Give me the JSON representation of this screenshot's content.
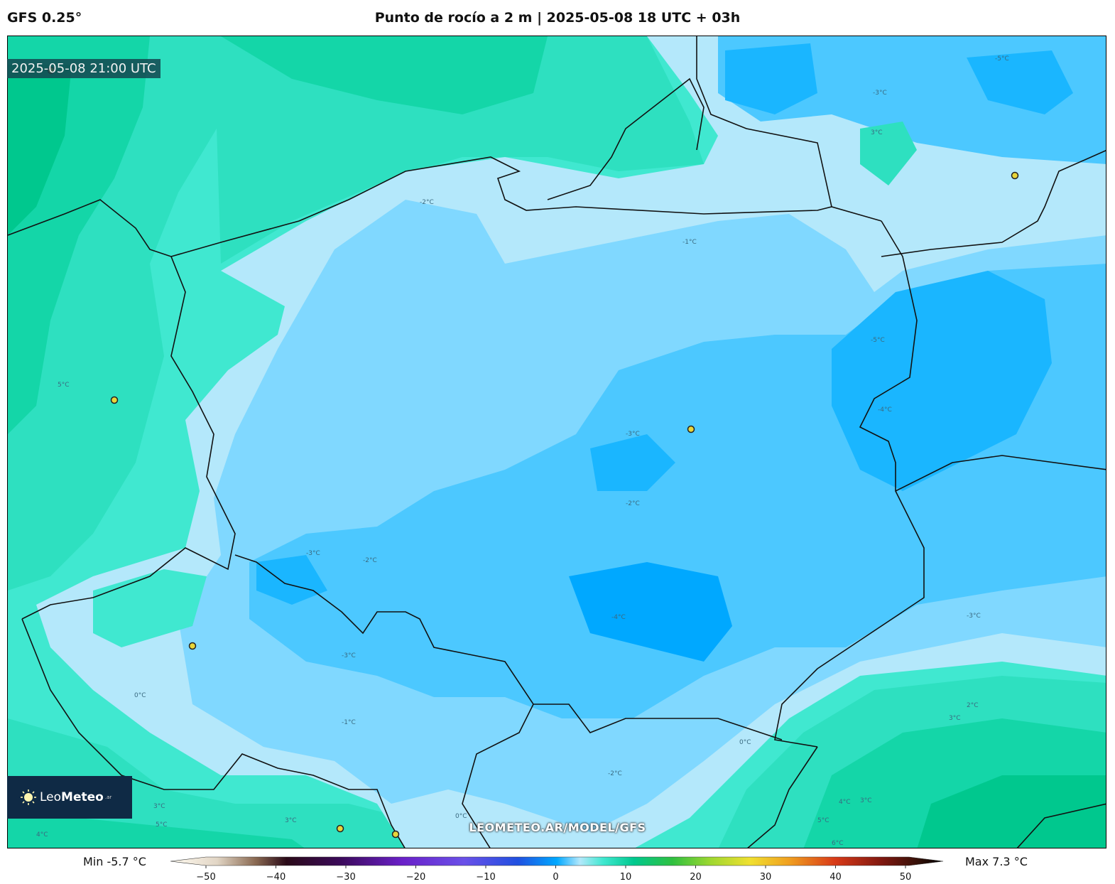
{
  "header": {
    "model": "GFS 0.25°",
    "title": "Punto de rocío a 2 m | 2025-05-08 18 UTC + 03h"
  },
  "map": {
    "timestamp": "2025-05-08 21:00 UTC",
    "watermark": "LEOMETEO.AR/MODEL/GFS",
    "contour_labels": [
      "-5°C",
      "-4°C",
      "-3°C",
      "-2°C",
      "-1°C",
      "0°C",
      "1°C",
      "2°C",
      "3°C",
      "4°C",
      "5°C",
      "6°C"
    ]
  },
  "logo": {
    "text_light": "Leo",
    "text_bold": "Meteo",
    "suffix": ".ar"
  },
  "legend": {
    "min_label": "Min -5.7 °C",
    "max_label": "Max 7.3 °C",
    "ticks": [
      "−50",
      "−40",
      "−30",
      "−20",
      "−10",
      "0",
      "10",
      "20",
      "30",
      "40",
      "50"
    ],
    "range": [
      -50,
      50
    ]
  },
  "colors": {
    "dew_m5": "#00a8ff",
    "dew_m4": "#1ab6ff",
    "dew_m3": "#4cc8ff",
    "dew_m2": "#80d8ff",
    "dew_m1": "#b4e8fb",
    "dew_0": "#40e8d0",
    "dew_2": "#2ee0c0",
    "dew_4": "#14d6a8",
    "dew_6": "#00c88e"
  }
}
